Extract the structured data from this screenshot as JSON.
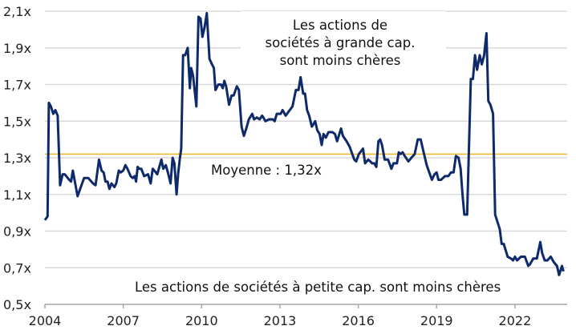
{
  "chart_data": {
    "type": "line",
    "title": "",
    "xlabel": "",
    "ylabel": "",
    "xlim": [
      2004,
      2024
    ],
    "ylim": [
      0.5,
      2.1
    ],
    "grid": true,
    "x_ticks": [
      "2004",
      "2007",
      "2010",
      "2013",
      "2016",
      "2019",
      "2022"
    ],
    "x_tick_values": [
      2004,
      2007,
      2010,
      2013,
      2016,
      2019,
      2022
    ],
    "y_ticks": [
      "0,5x",
      "0,7x",
      "0,9x",
      "1,1x",
      "1,3x",
      "1,5x",
      "1,7x",
      "1,9x",
      "2,1x"
    ],
    "y_tick_values": [
      0.5,
      0.7,
      0.9,
      1.1,
      1.3,
      1.5,
      1.7,
      1.9,
      2.1
    ],
    "colors": {
      "series": "#0e2a6b",
      "average": "#f0b429",
      "grid": "#d9d9d9",
      "axis": "#a6a6a6"
    },
    "average": {
      "value": 1.32,
      "label": "Moyenne : 1,32x"
    },
    "annotations": {
      "top": [
        "Les actions de",
        "sociétés à grande cap.",
        "sont moins chères"
      ],
      "bottom": "Les actions de sociétés à petite cap. sont moins chères"
    },
    "series": [
      {
        "x": [
          2004.0,
          2004.1,
          2004.15,
          2004.23,
          2004.32,
          2004.4,
          2004.49,
          2004.58,
          2004.68,
          2004.76,
          2004.93,
          2005.0,
          2005.07,
          2005.25,
          2005.35,
          2005.5,
          2005.66,
          2005.84,
          2005.94,
          2006.07,
          2006.17,
          2006.25,
          2006.32,
          2006.4,
          2006.47,
          2006.55,
          2006.66,
          2006.73,
          2006.83,
          2006.9,
          2007.0,
          2007.08,
          2007.16,
          2007.28,
          2007.36,
          2007.44,
          2007.49,
          2007.55,
          2007.61,
          2007.69,
          2007.8,
          2007.95,
          2008.05,
          2008.13,
          2008.25,
          2008.3,
          2008.46,
          2008.53,
          2008.63,
          2008.71,
          2008.81,
          2008.89,
          2008.96,
          2009.04,
          2009.1,
          2009.17,
          2009.22,
          2009.29,
          2009.37,
          2009.47,
          2009.55,
          2009.6,
          2009.67,
          2009.8,
          2009.88,
          2009.96,
          2010.03,
          2010.11,
          2010.2,
          2010.3,
          2010.4,
          2010.47,
          2010.53,
          2010.64,
          2010.74,
          2010.81,
          2010.87,
          2010.94,
          2011.05,
          2011.15,
          2011.23,
          2011.35,
          2011.43,
          2011.53,
          2011.62,
          2011.71,
          2011.81,
          2011.94,
          2012.01,
          2012.11,
          2012.22,
          2012.32,
          2012.45,
          2012.58,
          2012.73,
          2012.8,
          2012.88,
          2013.03,
          2013.1,
          2013.22,
          2013.48,
          2013.61,
          2013.71,
          2013.79,
          2013.89,
          2013.96,
          2014.04,
          2014.12,
          2014.22,
          2014.27,
          2014.35,
          2014.43,
          2014.52,
          2014.6,
          2014.67,
          2014.76,
          2014.86,
          2015.01,
          2015.11,
          2015.19,
          2015.34,
          2015.41,
          2015.55,
          2015.67,
          2015.77,
          2015.85,
          2015.92,
          2016.02,
          2016.18,
          2016.26,
          2016.38,
          2016.46,
          2016.53,
          2016.61,
          2016.69,
          2016.77,
          2016.84,
          2016.91,
          2017.01,
          2017.14,
          2017.27,
          2017.35,
          2017.48,
          2017.55,
          2017.62,
          2017.7,
          2017.78,
          2017.92,
          2018.03,
          2018.16,
          2018.28,
          2018.39,
          2018.52,
          2018.62,
          2018.72,
          2018.82,
          2018.92,
          2019.0,
          2019.07,
          2019.17,
          2019.32,
          2019.45,
          2019.55,
          2019.65,
          2019.74,
          2019.84,
          2019.92,
          2019.99,
          2020.06,
          2020.17,
          2020.31,
          2020.39,
          2020.47,
          2020.55,
          2020.65,
          2020.73,
          2020.82,
          2020.91,
          2020.98,
          2021.06,
          2021.16,
          2021.24,
          2021.33,
          2021.42,
          2021.49,
          2021.57,
          2021.72,
          2021.85,
          2021.93,
          2022.0,
          2022.08,
          2022.23,
          2022.38,
          2022.51,
          2022.58,
          2022.7,
          2022.84,
          2022.97,
          2023.04,
          2023.14,
          2023.24,
          2023.37,
          2023.49,
          2023.61,
          2023.69,
          2023.8,
          2023.86
        ],
        "y": [
          0.96,
          0.98,
          1.6,
          1.58,
          1.54,
          1.56,
          1.53,
          1.15,
          1.21,
          1.21,
          1.18,
          1.17,
          1.23,
          1.09,
          1.13,
          1.19,
          1.19,
          1.16,
          1.15,
          1.29,
          1.23,
          1.22,
          1.17,
          1.17,
          1.13,
          1.16,
          1.14,
          1.16,
          1.23,
          1.22,
          1.23,
          1.26,
          1.24,
          1.2,
          1.19,
          1.2,
          1.17,
          1.25,
          1.24,
          1.24,
          1.2,
          1.21,
          1.16,
          1.24,
          1.22,
          1.21,
          1.29,
          1.24,
          1.26,
          1.22,
          1.16,
          1.3,
          1.27,
          1.1,
          1.21,
          1.3,
          1.35,
          1.86,
          1.86,
          1.9,
          1.68,
          1.79,
          1.75,
          1.58,
          2.07,
          2.06,
          1.96,
          2.01,
          2.09,
          1.84,
          1.81,
          1.79,
          1.67,
          1.7,
          1.7,
          1.68,
          1.72,
          1.69,
          1.59,
          1.64,
          1.64,
          1.69,
          1.67,
          1.47,
          1.42,
          1.46,
          1.51,
          1.54,
          1.51,
          1.52,
          1.51,
          1.53,
          1.5,
          1.51,
          1.51,
          1.5,
          1.54,
          1.54,
          1.56,
          1.53,
          1.58,
          1.67,
          1.67,
          1.74,
          1.65,
          1.65,
          1.56,
          1.53,
          1.47,
          1.48,
          1.5,
          1.45,
          1.43,
          1.37,
          1.43,
          1.41,
          1.44,
          1.44,
          1.43,
          1.39,
          1.46,
          1.42,
          1.39,
          1.36,
          1.32,
          1.29,
          1.28,
          1.32,
          1.35,
          1.27,
          1.29,
          1.28,
          1.27,
          1.27,
          1.25,
          1.39,
          1.4,
          1.37,
          1.29,
          1.29,
          1.24,
          1.27,
          1.27,
          1.33,
          1.32,
          1.33,
          1.31,
          1.28,
          1.3,
          1.32,
          1.4,
          1.4,
          1.32,
          1.26,
          1.22,
          1.18,
          1.21,
          1.22,
          1.18,
          1.18,
          1.2,
          1.2,
          1.22,
          1.22,
          1.31,
          1.3,
          1.24,
          1.1,
          0.99,
          0.99,
          1.73,
          1.73,
          1.86,
          1.78,
          1.86,
          1.81,
          1.86,
          1.98,
          1.61,
          1.59,
          1.54,
          0.99,
          0.95,
          0.91,
          0.83,
          0.83,
          0.76,
          0.75,
          0.74,
          0.76,
          0.74,
          0.76,
          0.76,
          0.71,
          0.72,
          0.75,
          0.75,
          0.84,
          0.78,
          0.74,
          0.74,
          0.76,
          0.73,
          0.71,
          0.66,
          0.71,
          0.68
        ]
      }
    ]
  }
}
